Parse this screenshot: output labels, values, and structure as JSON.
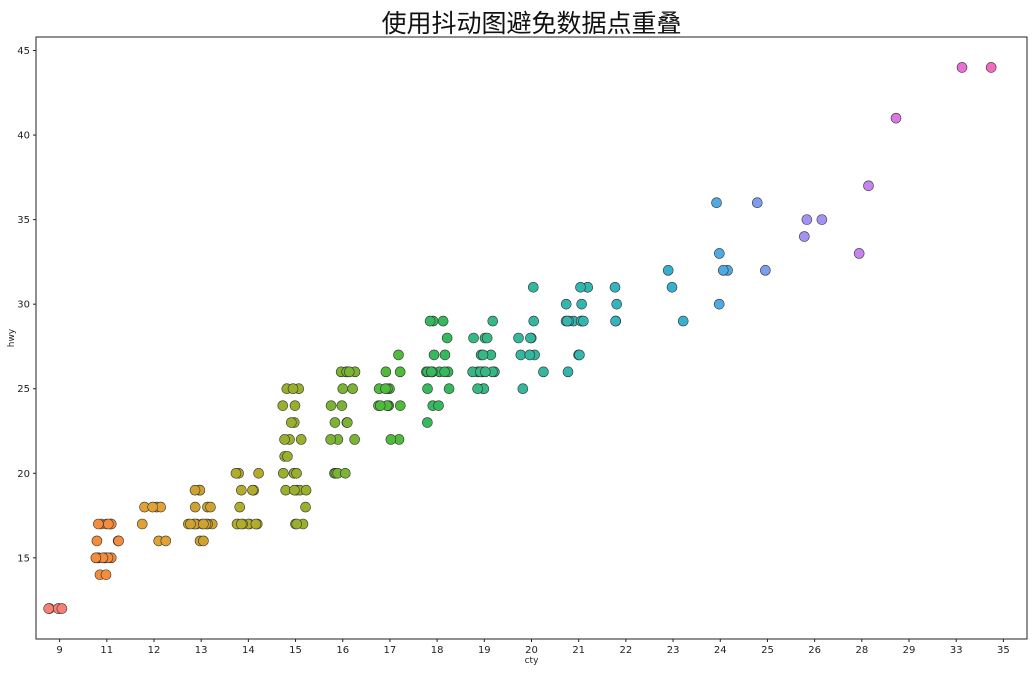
{
  "chart_data": {
    "type": "scatter",
    "title": "使用抖动图避免数据点重叠",
    "xlabel": "cty",
    "ylabel": "hwy",
    "x_categories": [
      "9",
      "11",
      "12",
      "13",
      "14",
      "15",
      "16",
      "17",
      "18",
      "19",
      "20",
      "21",
      "22",
      "23",
      "24",
      "25",
      "26",
      "28",
      "29",
      "33",
      "35"
    ],
    "yticks": [
      15,
      20,
      25,
      30,
      35,
      40,
      45
    ],
    "ylim": [
      10.2,
      45.8
    ],
    "grid": false,
    "legend": "none",
    "marker_edge_color": "#333333",
    "palette": [
      "#f77f74",
      "#f48c3c",
      "#e0a235",
      "#cfa22f",
      "#b3ac2a",
      "#9ab02c",
      "#7bb432",
      "#4fbb3b",
      "#36b95c",
      "#35b884",
      "#33b89f",
      "#34b6b0",
      "#34b4be",
      "#36b0cc",
      "#4fa9e3",
      "#7c9eee",
      "#a591f2",
      "#c685ee",
      "#dc76e3",
      "#ea6ed6",
      "#f26bc0"
    ],
    "points": [
      {
        "cat": "9",
        "hwy": [
          12,
          12,
          12,
          12,
          12
        ]
      },
      {
        "cat": "11",
        "hwy": [
          17,
          17,
          17,
          17,
          17,
          17,
          16,
          16,
          16,
          15,
          15,
          15,
          15,
          15,
          15,
          15,
          15,
          14,
          14
        ]
      },
      {
        "cat": "12",
        "hwy": [
          18,
          18,
          18,
          18,
          17,
          16,
          16
        ]
      },
      {
        "cat": "13",
        "hwy": [
          19,
          19,
          19,
          19,
          18,
          18,
          18,
          17,
          17,
          17,
          17,
          17,
          17,
          17,
          17,
          17,
          17,
          16,
          16
        ]
      },
      {
        "cat": "14",
        "hwy": [
          20,
          20,
          20,
          19,
          19,
          19,
          18,
          17,
          17,
          17,
          17,
          17,
          17,
          17,
          17
        ]
      },
      {
        "cat": "15",
        "hwy": [
          25,
          25,
          25,
          24,
          24,
          23,
          23,
          22,
          22,
          22,
          21,
          21,
          20,
          20,
          20,
          19,
          19,
          19,
          19,
          19,
          18,
          17,
          17,
          17
        ]
      },
      {
        "cat": "16",
        "hwy": [
          26,
          26,
          26,
          26,
          26,
          25,
          25,
          24,
          24,
          23,
          23,
          23,
          22,
          22,
          22,
          20,
          20,
          20,
          20
        ]
      },
      {
        "cat": "17",
        "hwy": [
          27,
          26,
          26,
          25,
          25,
          25,
          25,
          24,
          24,
          24,
          24,
          24,
          24,
          22,
          22
        ]
      },
      {
        "cat": "18",
        "hwy": [
          29,
          29,
          29,
          28,
          27,
          27,
          26,
          26,
          26,
          26,
          26,
          26,
          26,
          26,
          25,
          25,
          24,
          24,
          23
        ]
      },
      {
        "cat": "19",
        "hwy": [
          29,
          28,
          28,
          28,
          27,
          27,
          27,
          26,
          26,
          26,
          26,
          26,
          26,
          26,
          25,
          25,
          25
        ]
      },
      {
        "cat": "20",
        "hwy": [
          31,
          29,
          28,
          28,
          28,
          27,
          27,
          27,
          26,
          25
        ]
      },
      {
        "cat": "21",
        "hwy": [
          31,
          31,
          31,
          30,
          30,
          29,
          29,
          29,
          29,
          29,
          29,
          29,
          27,
          27,
          26
        ]
      },
      {
        "cat": "22",
        "hwy": [
          31,
          30,
          29,
          29
        ]
      },
      {
        "cat": "23",
        "hwy": [
          32,
          31,
          29
        ]
      },
      {
        "cat": "24",
        "hwy": [
          36,
          33,
          32,
          32,
          30
        ]
      },
      {
        "cat": "25",
        "hwy": [
          36,
          32
        ]
      },
      {
        "cat": "26",
        "hwy": [
          35,
          35,
          34
        ]
      },
      {
        "cat": "28",
        "hwy": [
          37,
          33
        ]
      },
      {
        "cat": "29",
        "hwy": [
          41
        ]
      },
      {
        "cat": "33",
        "hwy": [
          44
        ]
      },
      {
        "cat": "35",
        "hwy": [
          44
        ]
      }
    ]
  }
}
